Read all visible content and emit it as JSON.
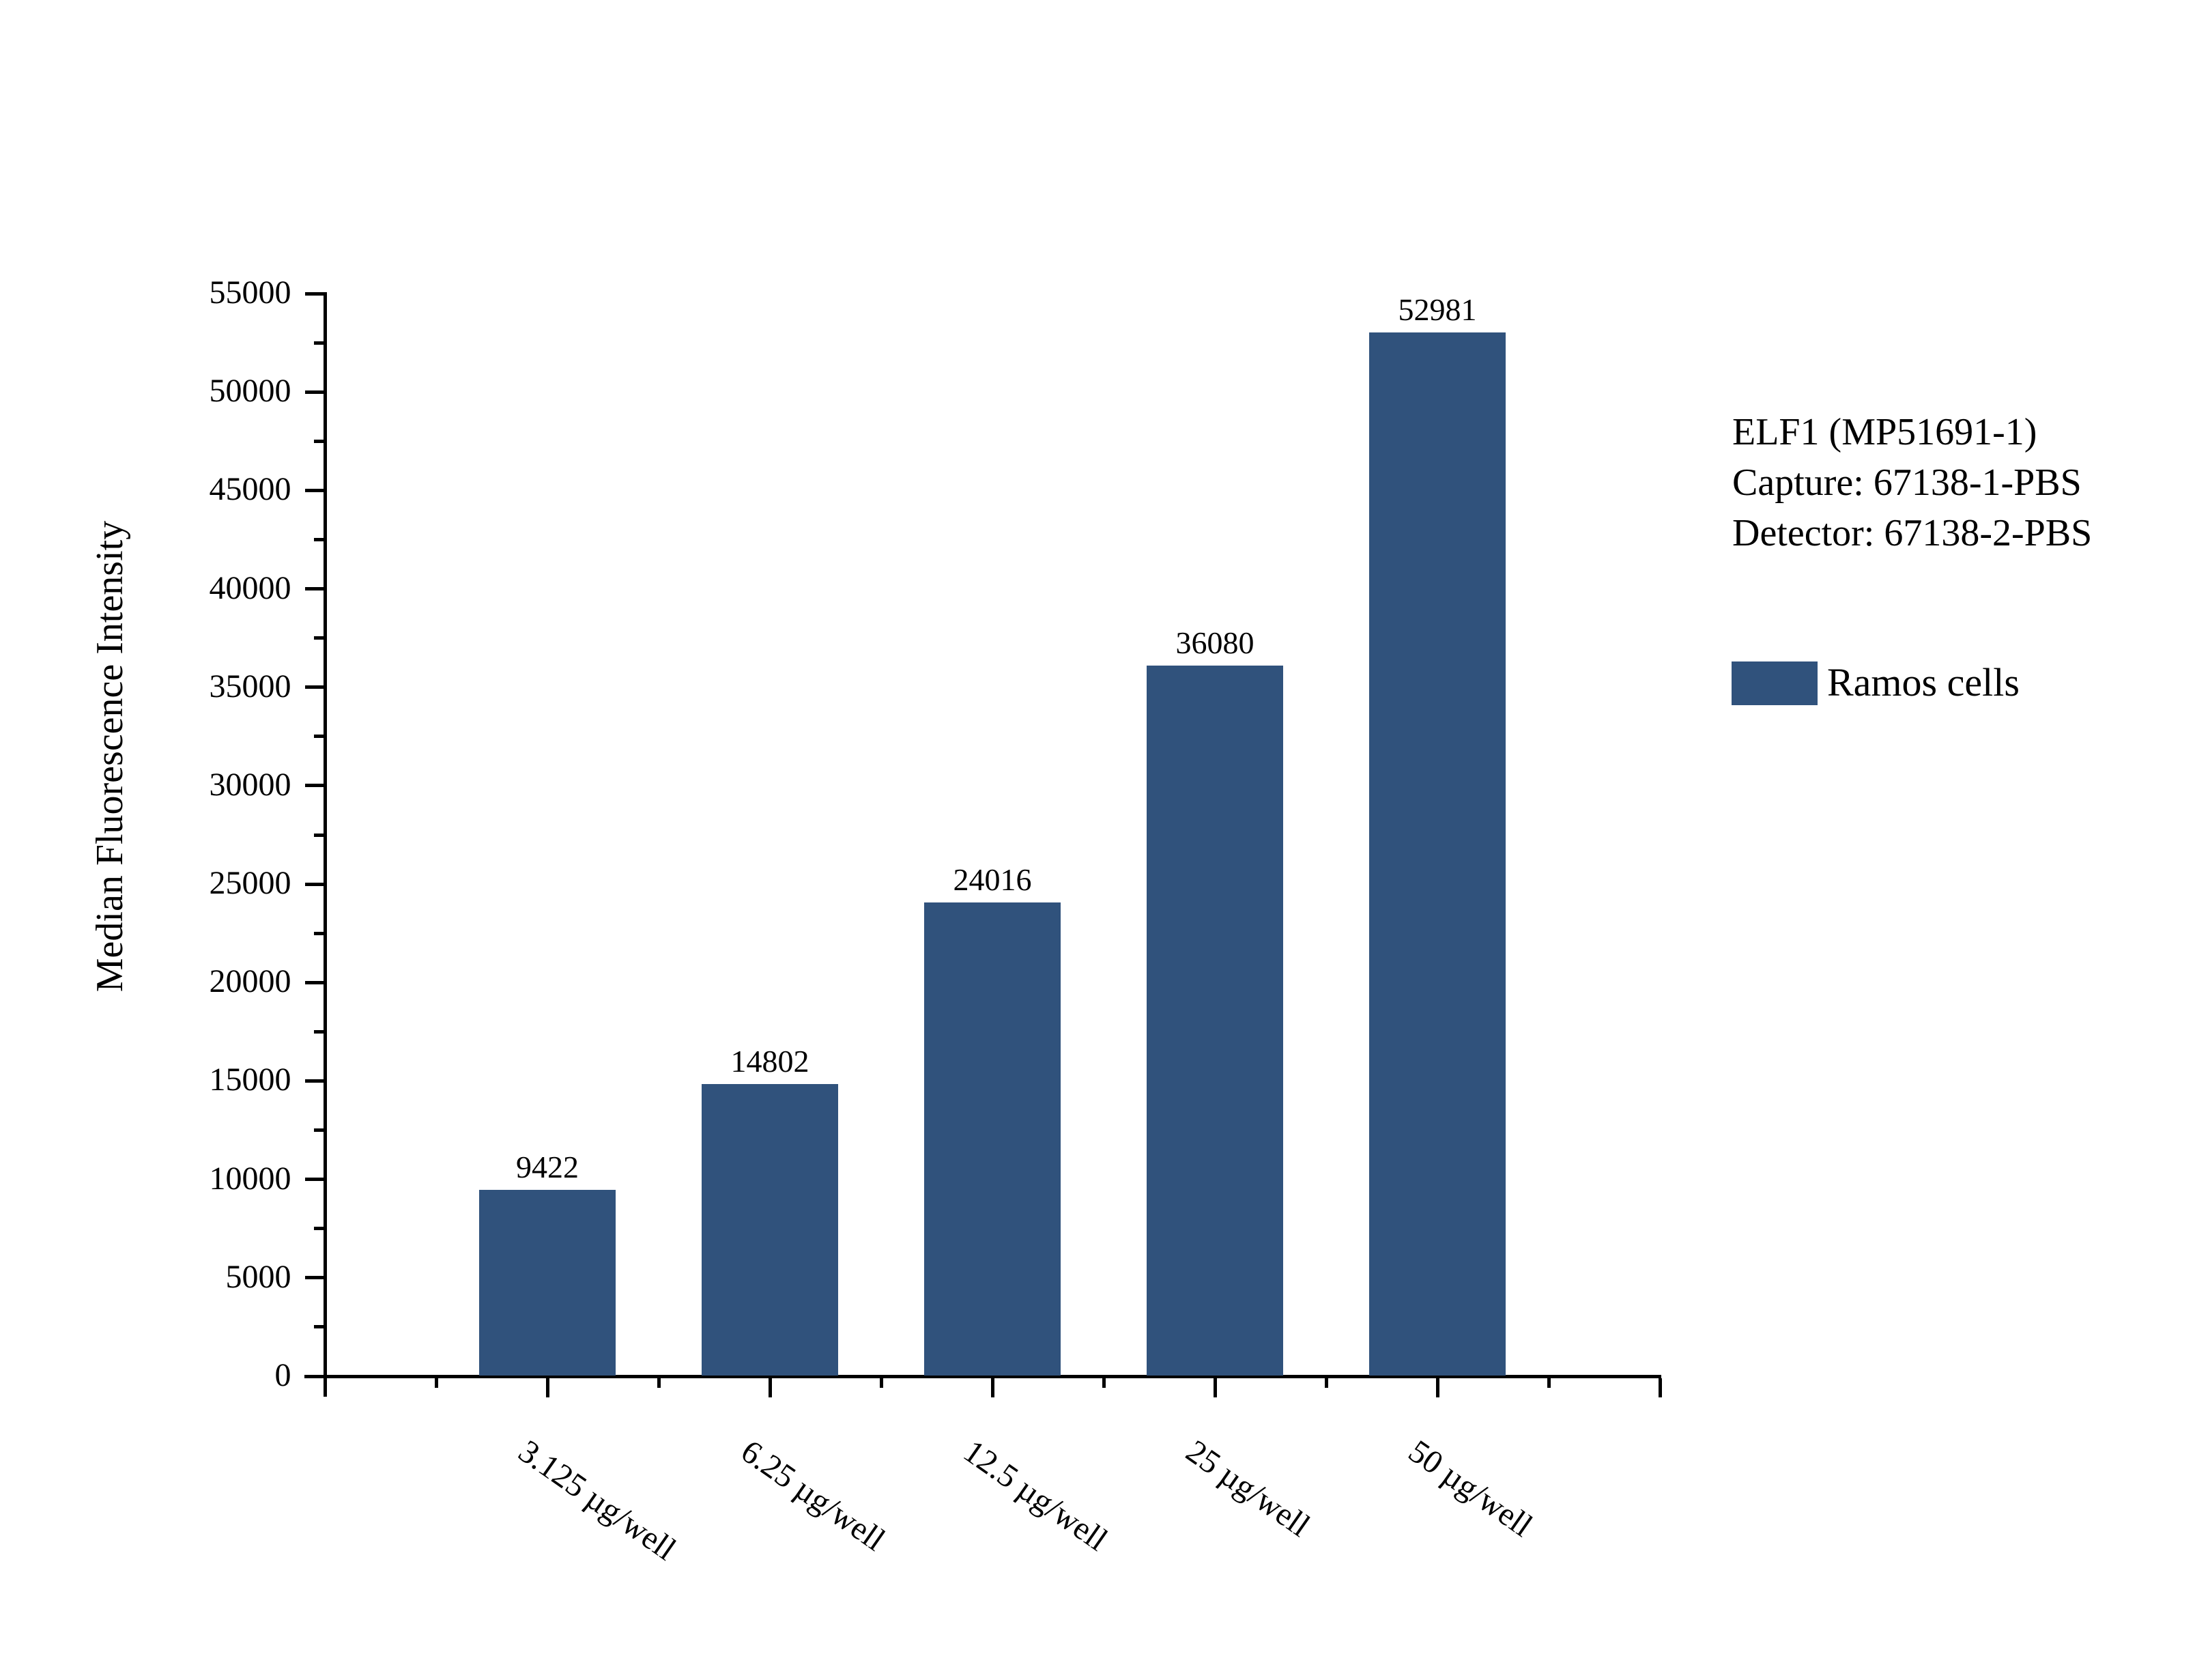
{
  "figure": {
    "background": "#ffffff",
    "text_color": "#000000"
  },
  "chart_data": {
    "type": "bar",
    "categories": [
      "3.125 µg/well",
      "6.25 µg/well",
      "12.5 µg/well",
      "25 µg/well",
      "50 µg/well"
    ],
    "values": [
      9422,
      14802,
      24016,
      36080,
      52981
    ],
    "series_name": "Ramos cells",
    "title": "",
    "xlabel": "",
    "ylabel": "Median Fluorescence Intensity",
    "ylim": [
      0,
      55000
    ],
    "y_major_step": 5000,
    "y_minor_step": 2500,
    "grid": false,
    "value_labels": true,
    "bar_color": "#30527C",
    "legend_position": "right"
  },
  "axis": {
    "y_tick_labels": [
      "0",
      "5000",
      "10000",
      "15000",
      "20000",
      "25000",
      "30000",
      "35000",
      "40000",
      "45000",
      "50000",
      "55000"
    ]
  },
  "annotation": {
    "lines": [
      "ELF1 (MP51691-1)",
      "Capture: 67138-1-PBS",
      "Detector: 67138-2-PBS"
    ]
  },
  "legend": {
    "label": "Ramos cells",
    "swatch_color": "#30527C"
  }
}
